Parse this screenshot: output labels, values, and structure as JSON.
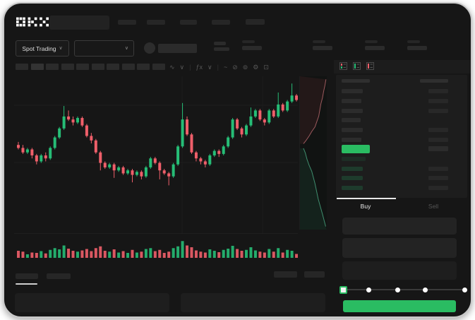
{
  "theme": {
    "up_color": "#26bd76",
    "down_color": "#ef5f6a",
    "accent_green": "#2abc62",
    "frame_bg": "#161616",
    "panel_bg": "#1d1d1d"
  },
  "header": {
    "logo_text": "OKX"
  },
  "subheader": {
    "market_selector_label": "Spot Trading",
    "market_selector_chevron": "∨",
    "pair_dropdown_chevron": "∨"
  },
  "toolbar": {
    "icons": [
      {
        "name": "chart-style-icon",
        "glyph": "∿"
      },
      {
        "name": "chevron-down-icon",
        "glyph": "∨"
      },
      {
        "name": "divider",
        "glyph": "|"
      },
      {
        "name": "indicators-icon",
        "glyph": "ƒx"
      },
      {
        "name": "chevron-down-icon",
        "glyph": "∨"
      },
      {
        "name": "divider",
        "glyph": "|"
      },
      {
        "name": "line-tool-icon",
        "glyph": "~"
      },
      {
        "name": "draw-tool-icon",
        "glyph": "⊘"
      },
      {
        "name": "camera-icon",
        "glyph": "⊚"
      },
      {
        "name": "settings-gear-icon",
        "glyph": "⚙"
      },
      {
        "name": "fullscreen-icon",
        "glyph": "⊡"
      }
    ]
  },
  "chart_data": {
    "type": "candlestick",
    "title": "",
    "xlabel": "",
    "ylabel": "",
    "price_scale": [
      0,
      100
    ],
    "grid": {
      "h_values": [
        83.5,
        45.3
      ],
      "v_positions": [
        238,
        352
      ]
    },
    "colors": {
      "up": "#26bd76",
      "down": "#ef5f6a"
    },
    "candles": [
      [
        57,
        59,
        54,
        55
      ],
      [
        55,
        57,
        51,
        52
      ],
      [
        52,
        55,
        51,
        54
      ],
      [
        54,
        55,
        48,
        50
      ],
      [
        50,
        51,
        44,
        46
      ],
      [
        46,
        51,
        45,
        50
      ],
      [
        50,
        52,
        46,
        48
      ],
      [
        48,
        56,
        47,
        55
      ],
      [
        55,
        63,
        54,
        62
      ],
      [
        62,
        69,
        61,
        68
      ],
      [
        68,
        83,
        67,
        76
      ],
      [
        76,
        80,
        73,
        74
      ],
      [
        74,
        76,
        70,
        72
      ],
      [
        72,
        76,
        71,
        75
      ],
      [
        75,
        76,
        69,
        70
      ],
      [
        70,
        71,
        62,
        63
      ],
      [
        63,
        65,
        58,
        60
      ],
      [
        60,
        61,
        51,
        52
      ],
      [
        52,
        53,
        40,
        45
      ],
      [
        45,
        46,
        41,
        42
      ],
      [
        42,
        45,
        41,
        44
      ],
      [
        44,
        45,
        35,
        40
      ],
      [
        40,
        43,
        39,
        42
      ],
      [
        42,
        43,
        37,
        38
      ],
      [
        38,
        41,
        37,
        40
      ],
      [
        40,
        41,
        32,
        37
      ],
      [
        37,
        40,
        36,
        39
      ],
      [
        39,
        40,
        34,
        36
      ],
      [
        36,
        43,
        35,
        42
      ],
      [
        42,
        49,
        41,
        48
      ],
      [
        48,
        49,
        44,
        45
      ],
      [
        45,
        46,
        34,
        40
      ],
      [
        40,
        41,
        37,
        38
      ],
      [
        38,
        39,
        30,
        36
      ],
      [
        36,
        45,
        35,
        44
      ],
      [
        44,
        57,
        43,
        56
      ],
      [
        56,
        85,
        55,
        74
      ],
      [
        74,
        76,
        63,
        64
      ],
      [
        64,
        65,
        51,
        52
      ],
      [
        52,
        53,
        46,
        48
      ],
      [
        48,
        49,
        44,
        46
      ],
      [
        46,
        47,
        42,
        44
      ],
      [
        44,
        51,
        43,
        50
      ],
      [
        50,
        54,
        49,
        53
      ],
      [
        53,
        54,
        49,
        51
      ],
      [
        51,
        57,
        50,
        56
      ],
      [
        56,
        63,
        55,
        62
      ],
      [
        62,
        75,
        61,
        74
      ],
      [
        74,
        75,
        67,
        68
      ],
      [
        68,
        69,
        62,
        64
      ],
      [
        64,
        71,
        63,
        70
      ],
      [
        70,
        82,
        69,
        76
      ],
      [
        76,
        81,
        75,
        80
      ],
      [
        80,
        81,
        73,
        74
      ],
      [
        74,
        75,
        70,
        72
      ],
      [
        72,
        81,
        71,
        80
      ],
      [
        80,
        81,
        75,
        76
      ],
      [
        76,
        92,
        75,
        84
      ],
      [
        84,
        85,
        79,
        80
      ],
      [
        80,
        87,
        79,
        86
      ],
      [
        86,
        98,
        85,
        90
      ],
      [
        90,
        91,
        86,
        87
      ]
    ],
    "volume": [
      40,
      35,
      20,
      30,
      28,
      38,
      25,
      45,
      55,
      48,
      70,
      52,
      40,
      35,
      42,
      50,
      38,
      55,
      65,
      40,
      35,
      48,
      30,
      38,
      28,
      45,
      30,
      35,
      50,
      55,
      38,
      45,
      28,
      35,
      55,
      65,
      95,
      70,
      60,
      42,
      35,
      30,
      48,
      40,
      32,
      45,
      52,
      68,
      50,
      40,
      45,
      60,
      42,
      35,
      30,
      50,
      35,
      55,
      30,
      45,
      40,
      22
    ],
    "depth": {
      "asks": [
        [
          97,
          2
        ],
        [
          93,
          6
        ],
        [
          88,
          10
        ],
        [
          84,
          14
        ],
        [
          78,
          18
        ],
        [
          74,
          22
        ],
        [
          70,
          26
        ],
        [
          62,
          30
        ],
        [
          56,
          33
        ],
        [
          44,
          36
        ],
        [
          34,
          39
        ],
        [
          22,
          42
        ],
        [
          13,
          44
        ]
      ],
      "bids": [
        [
          13,
          47
        ],
        [
          20,
          50
        ],
        [
          26,
          54
        ],
        [
          34,
          58
        ],
        [
          44,
          62
        ],
        [
          50,
          66
        ],
        [
          56,
          70
        ],
        [
          62,
          75
        ],
        [
          68,
          80
        ],
        [
          76,
          85
        ],
        [
          84,
          90
        ],
        [
          90,
          94
        ],
        [
          96,
          98
        ]
      ],
      "ask_line_color": "#9c5a5e",
      "bid_line_color": "#3f8e6e",
      "ask_fill": "rgba(150,60,62,0.14)",
      "bid_fill": "rgba(45,130,92,0.14)"
    }
  },
  "orderbook": {
    "view_icons": [
      {
        "name": "orderbook-default-view-icon"
      },
      {
        "name": "orderbook-buy-view-icon"
      },
      {
        "name": "orderbook-sell-view-icon"
      }
    ],
    "asks": [
      {
        "price_bar_w": 30,
        "has_amount": true
      },
      {
        "price_bar_w": 28,
        "has_amount": true
      },
      {
        "price_bar_w": 30,
        "has_amount": true
      },
      {
        "price_bar_w": 27,
        "has_amount": false
      },
      {
        "price_bar_w": 30,
        "has_amount": true
      },
      {
        "price_bar_w": 28,
        "has_amount": true
      }
    ],
    "bids": [
      {
        "price_bar_w": 34,
        "has_amount": false,
        "dim": true
      },
      {
        "price_bar_w": 30,
        "has_amount": true
      },
      {
        "price_bar_w": 30,
        "has_amount": true
      },
      {
        "price_bar_w": 30,
        "has_amount": true
      }
    ]
  },
  "trade_panel": {
    "tabs": [
      {
        "label": "Buy",
        "active": true
      },
      {
        "label": "Sell",
        "active": false
      }
    ],
    "slider": {
      "stops_pct": [
        0,
        21,
        45,
        68,
        100
      ],
      "active_stop": 0
    },
    "submit_button": {
      "color": "#2abc62"
    }
  }
}
